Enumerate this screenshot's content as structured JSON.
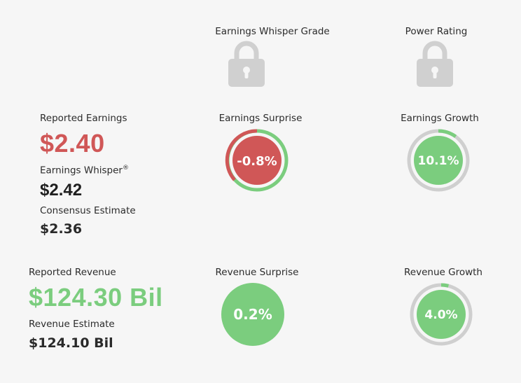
{
  "grades": {
    "whisper_grade_label": "Earnings Whisper Grade",
    "power_rating_label": "Power Rating",
    "whisper_grade_icon": "lock-icon",
    "power_rating_icon": "lock-icon"
  },
  "earnings": {
    "reported_label": "Reported Earnings",
    "reported_value": "$2.40",
    "whisper_label": "Earnings Whisper",
    "whisper_sup": "®",
    "whisper_value": "$2.42",
    "consensus_label": "Consensus Estimate",
    "consensus_value": "$2.36",
    "surprise_label": "Earnings Surprise",
    "surprise_value": "-0.8%",
    "surprise_fraction": 0.008,
    "growth_label": "Earnings Growth",
    "growth_value": "10.1%",
    "growth_fraction": 0.101
  },
  "revenue": {
    "reported_label": "Reported Revenue",
    "reported_value": "$124.30 Bil",
    "estimate_label": "Revenue Estimate",
    "estimate_value": "$124.10 Bil",
    "surprise_label": "Revenue Surprise",
    "surprise_value": "0.2%",
    "surprise_fraction": 0.002,
    "growth_label": "Revenue Growth",
    "growth_value": "4.0%",
    "growth_fraction": 0.04
  },
  "colors": {
    "red": "#d05757",
    "green": "#7bcd7e",
    "gray_ring": "#cfcfcf",
    "lock": "#d0d0d0"
  }
}
